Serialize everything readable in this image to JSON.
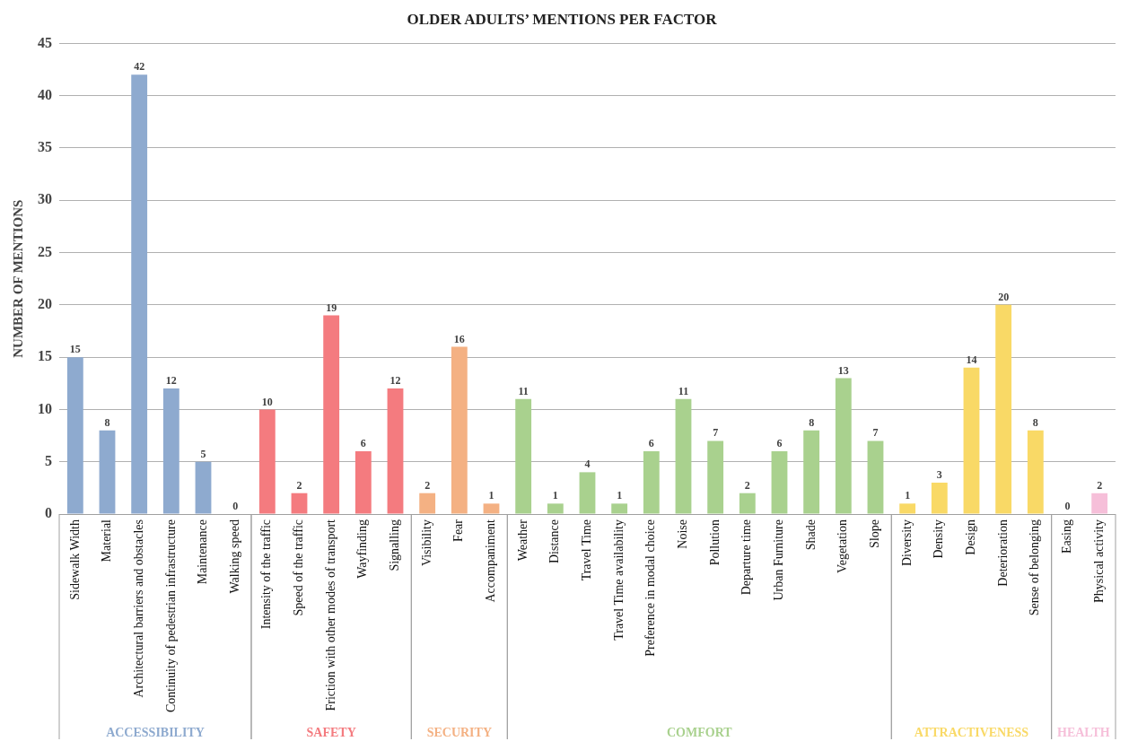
{
  "chart_data": {
    "type": "bar",
    "title": "OLDER ADULTS’ MENTIONS PER FACTOR",
    "ylabel": "NUMBER OF MENTIONS",
    "categories": [
      "Sidewalk Width",
      "Material",
      "Architectural barriers and obstacles",
      "Continuity of pedestrian infrastructure",
      "Maintenance",
      "Walking speed",
      "Intensity of the traffic",
      "Speed of the traffic",
      "Friction with other modes of transport",
      "Wayfinding",
      "Signalling",
      "Visibility",
      "Fear",
      "Accompaniment",
      "Weather",
      "Distance",
      "Travel Time",
      "Travel Time availability",
      "Preference in modal choice",
      "Noise",
      "Pollution",
      "Departure time",
      "Urban Furniture",
      "Shade",
      "Vegetation",
      "Slope",
      "Diversity",
      "Density",
      "Design",
      "Deterioration",
      "Sense of belonging",
      "Easing",
      "Physical activity"
    ],
    "series": [
      {
        "name": "ACCESSIBILITY",
        "color": "#8eaacf",
        "values": [
          15,
          8,
          42,
          12,
          5,
          0,
          null,
          null,
          null,
          null,
          null,
          null,
          null,
          null,
          null,
          null,
          null,
          null,
          null,
          null,
          null,
          null,
          null,
          null,
          null,
          null,
          null,
          null,
          null,
          null,
          null,
          null,
          null
        ]
      },
      {
        "name": "SAFETY",
        "color": "#f47b7f",
        "values": [
          null,
          null,
          null,
          null,
          null,
          null,
          10,
          2,
          19,
          6,
          12,
          null,
          null,
          null,
          null,
          null,
          null,
          null,
          null,
          null,
          null,
          null,
          null,
          null,
          null,
          null,
          null,
          null,
          null,
          null,
          null,
          null,
          null
        ]
      },
      {
        "name": "SECURITY",
        "color": "#f4b183",
        "values": [
          null,
          null,
          null,
          null,
          null,
          null,
          null,
          null,
          null,
          null,
          null,
          2,
          16,
          1,
          null,
          null,
          null,
          null,
          null,
          null,
          null,
          null,
          null,
          null,
          null,
          null,
          null,
          null,
          null,
          null,
          null,
          null,
          null
        ]
      },
      {
        "name": "COMFORT",
        "color": "#a9d18e",
        "values": [
          null,
          null,
          null,
          null,
          null,
          null,
          null,
          null,
          null,
          null,
          null,
          null,
          null,
          null,
          11,
          1,
          4,
          1,
          6,
          11,
          7,
          2,
          6,
          8,
          13,
          7,
          null,
          null,
          null,
          null,
          null,
          null,
          null
        ]
      },
      {
        "name": "ATTRACTIVENESS",
        "color": "#f9d966",
        "values": [
          null,
          null,
          null,
          null,
          null,
          null,
          null,
          null,
          null,
          null,
          null,
          null,
          null,
          null,
          null,
          null,
          null,
          null,
          null,
          null,
          null,
          null,
          null,
          null,
          null,
          null,
          1,
          3,
          14,
          20,
          8,
          null,
          null
        ]
      },
      {
        "name": "HEALTH",
        "color": "#f6bfd9",
        "values": [
          null,
          null,
          null,
          null,
          null,
          null,
          null,
          null,
          null,
          null,
          null,
          null,
          null,
          null,
          null,
          null,
          null,
          null,
          null,
          null,
          null,
          null,
          null,
          null,
          null,
          null,
          null,
          null,
          null,
          null,
          null,
          0,
          2
        ]
      }
    ],
    "ylim": [
      0,
      45
    ],
    "yticks": [
      0,
      5,
      10,
      15,
      20,
      25,
      30,
      35,
      40,
      45
    ],
    "grid": "y",
    "data_labels": true,
    "legend": false
  }
}
